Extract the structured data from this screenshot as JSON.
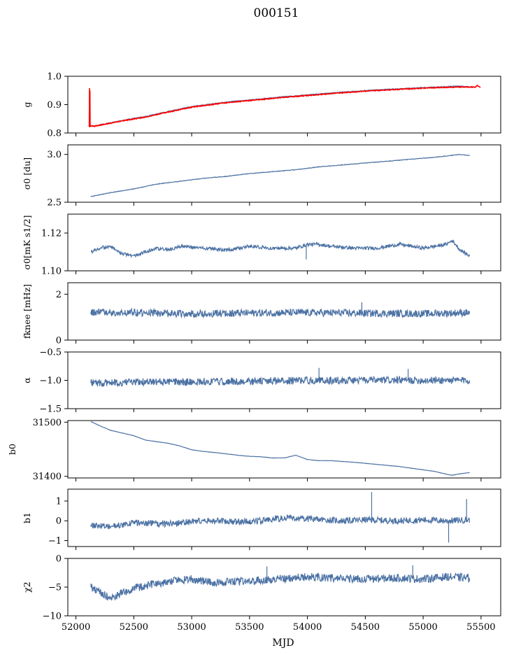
{
  "figure": {
    "title": "000151",
    "xlabel": "MJD"
  },
  "chart_data": {
    "type": "line",
    "shared_x": {
      "label": "MJD",
      "range": [
        51930,
        55670
      ],
      "ticks": [
        52000,
        52500,
        53000,
        53500,
        54000,
        54500,
        55000,
        55500
      ],
      "tick_labels": [
        "52000",
        "52500",
        "53000",
        "53500",
        "54000",
        "54500",
        "55000",
        "55500"
      ]
    },
    "panels": [
      {
        "id": "g",
        "ylabel": "g",
        "ylim": [
          0.8,
          1.0
        ],
        "yticks": [
          0.8,
          0.9,
          1.0
        ],
        "ytick_labels": [
          "0.8",
          "0.9",
          "1.0"
        ],
        "series": [
          {
            "color": "#4c72a4",
            "noise": 0.0015,
            "seed": 11,
            "x": [
              52120,
              52160,
              52200,
              52300,
              52450,
              52600,
              52800,
              53000,
              53300,
              53600,
              53800,
              54000,
              54300,
              54600,
              54900,
              55100,
              55300,
              55400
            ],
            "y": [
              0.824,
              0.825,
              0.828,
              0.836,
              0.848,
              0.858,
              0.876,
              0.893,
              0.909,
              0.92,
              0.928,
              0.934,
              0.944,
              0.952,
              0.958,
              0.962,
              0.965,
              0.963
            ]
          },
          {
            "color": "#ff0000",
            "noise": 0.0015,
            "seed": 12,
            "x": [
              52115,
              52117,
              52119,
              52121,
              52123,
              52125,
              52160,
              52200,
              52300,
              52450,
              52600,
              52800,
              53000,
              53300,
              53600,
              53800,
              54000,
              54300,
              54600,
              54900,
              55100,
              55300,
              55450,
              55470,
              55490
            ],
            "y": [
              0.822,
              0.958,
              0.82,
              0.95,
              0.822,
              0.825,
              0.824,
              0.827,
              0.835,
              0.846,
              0.856,
              0.874,
              0.891,
              0.907,
              0.918,
              0.926,
              0.932,
              0.942,
              0.95,
              0.956,
              0.96,
              0.962,
              0.962,
              0.968,
              0.962
            ]
          }
        ]
      },
      {
        "id": "sigma0-du",
        "ylabel": "σ0 [du]",
        "ylim": [
          2.5,
          3.1
        ],
        "yticks": [
          2.5,
          3.0
        ],
        "ytick_labels": [
          "2.5",
          "3.0"
        ],
        "series": [
          {
            "color": "#4c72a4",
            "noise": 0.003,
            "seed": 21,
            "x": [
              52130,
              52300,
              52500,
              52700,
              52900,
              53100,
              53300,
              53500,
              53700,
              53900,
              54100,
              54300,
              54500,
              54700,
              54900,
              55100,
              55250,
              55300,
              55400
            ],
            "y": [
              2.56,
              2.6,
              2.64,
              2.69,
              2.72,
              2.75,
              2.77,
              2.8,
              2.82,
              2.84,
              2.87,
              2.89,
              2.91,
              2.93,
              2.95,
              2.97,
              2.99,
              3.0,
              2.99
            ]
          }
        ]
      },
      {
        "id": "sigma0-mk",
        "ylabel": "σ0[mK s1/2]",
        "ylim": [
          1.1,
          1.13
        ],
        "yticks": [
          1.1,
          1.12
        ],
        "ytick_labels": [
          "1.10",
          "1.12"
        ],
        "series": [
          {
            "color": "#4c72a4",
            "noise": 0.0009,
            "seed": 31,
            "x": [
              52130,
              52200,
              52300,
              52400,
              52500,
              52600,
              52700,
              52800,
              52900,
              53100,
              53300,
              53500,
              53700,
              53900,
              54000,
              54100,
              54200,
              54400,
              54600,
              54800,
              55000,
              55100,
              55200,
              55250,
              55280,
              55320,
              55400
            ],
            "y": [
              1.11,
              1.112,
              1.113,
              1.109,
              1.108,
              1.11,
              1.112,
              1.111,
              1.113,
              1.112,
              1.111,
              1.113,
              1.112,
              1.112,
              1.114,
              1.114,
              1.113,
              1.112,
              1.112,
              1.114,
              1.112,
              1.113,
              1.114,
              1.116,
              1.114,
              1.111,
              1.108
            ]
          }
        ]
      },
      {
        "id": "fknee",
        "ylabel": "fknee [mHz]",
        "ylim": [
          0,
          2.5
        ],
        "yticks": [
          0,
          2
        ],
        "ytick_labels": [
          "0",
          "2"
        ],
        "series": [
          {
            "color": "#4c72a4",
            "noise": 0.16,
            "seed": 41,
            "x": [
              52130,
              52500,
              53000,
              53500,
              54000,
              54500,
              55000,
              55400
            ],
            "y": [
              1.22,
              1.2,
              1.15,
              1.18,
              1.2,
              1.17,
              1.15,
              1.2
            ]
          }
        ]
      },
      {
        "id": "alpha",
        "ylabel": "α",
        "ylim": [
          -1.5,
          -0.5
        ],
        "yticks": [
          -1.5,
          -1.0,
          -0.5
        ],
        "ytick_labels": [
          "−1.5",
          "−1.0",
          "−0.5"
        ],
        "series": [
          {
            "color": "#4c72a4",
            "noise": 0.065,
            "seed": 51,
            "x": [
              52130,
              52500,
              53000,
              53500,
              54000,
              54500,
              55000,
              55400
            ],
            "y": [
              -1.05,
              -1.03,
              -1.03,
              -1.02,
              -1.0,
              -1.0,
              -1.0,
              -1.0
            ]
          }
        ]
      },
      {
        "id": "b0",
        "ylabel": "b0",
        "ylim": [
          31397,
          31503
        ],
        "yticks": [
          31400,
          31500
        ],
        "ytick_labels": [
          "31400",
          "31500"
        ],
        "series": [
          {
            "color": "#4c72a4",
            "noise": 0.25,
            "seed": 61,
            "x": [
              52130,
              52200,
              52300,
              52400,
              52500,
              52600,
              52700,
              52800,
              52900,
              53000,
              53100,
              53200,
              53400,
              53500,
              53600,
              53700,
              53800,
              53900,
              54000,
              54100,
              54200,
              54400,
              54500,
              54600,
              54800,
              55000,
              55100,
              55200,
              55250,
              55300,
              55400
            ],
            "y": [
              31501,
              31494,
              31485,
              31480,
              31475,
              31467,
              31464,
              31461,
              31456,
              31449,
              31446,
              31444,
              31439,
              31437,
              31436,
              31434,
              31434,
              31439,
              31431,
              31429,
              31429,
              31426,
              31424,
              31422,
              31418,
              31412,
              31409,
              31404,
              31402,
              31404,
              31407
            ]
          }
        ]
      },
      {
        "id": "b1",
        "ylabel": "b1",
        "ylim": [
          -1.3,
          1.6
        ],
        "yticks": [
          -1,
          0,
          1
        ],
        "ytick_labels": [
          "−1",
          "0",
          "1"
        ],
        "series": [
          {
            "color": "#4c72a4",
            "noise": 0.16,
            "seed": 71,
            "x": [
              52130,
              52300,
              52500,
              52800,
              53100,
              53500,
              53800,
              54000,
              54300,
              54500,
              54800,
              55000,
              55200,
              55400
            ],
            "y": [
              -0.2,
              -0.3,
              -0.1,
              -0.15,
              0.0,
              -0.05,
              0.15,
              0.1,
              0.0,
              0.05,
              0.0,
              0.05,
              0.0,
              0.05
            ]
          }
        ]
      },
      {
        "id": "chi2",
        "ylabel": "χ2",
        "ylim": [
          -10,
          0
        ],
        "yticks": [
          -10,
          -5,
          0
        ],
        "ytick_labels": [
          "−10",
          "−5",
          "0"
        ],
        "series": [
          {
            "color": "#4c72a4",
            "noise": 0.7,
            "seed": 81,
            "x": [
              52130,
              52200,
              52300,
              52400,
              52500,
              52600,
              52800,
              53000,
              53200,
              53500,
              53800,
              54000,
              54200,
              54500,
              54800,
              55000,
              55200,
              55400
            ],
            "y": [
              -5.0,
              -5.8,
              -7.0,
              -6.0,
              -5.2,
              -4.8,
              -4.0,
              -3.6,
              -4.2,
              -4.0,
              -3.5,
              -3.2,
              -3.4,
              -3.6,
              -3.4,
              -3.6,
              -3.2,
              -3.4
            ]
          }
        ]
      }
    ],
    "spikes": [
      {
        "panel": "b1",
        "x": 54555,
        "y": 1.45
      },
      {
        "panel": "b1",
        "x": 55220,
        "y": -1.1
      },
      {
        "panel": "b1",
        "x": 55375,
        "y": 1.1
      },
      {
        "panel": "alpha",
        "x": 54100,
        "y": -0.78
      },
      {
        "panel": "alpha",
        "x": 54870,
        "y": -0.8
      },
      {
        "panel": "fknee",
        "x": 54470,
        "y": 1.65
      },
      {
        "panel": "sigma0-mk",
        "x": 53990,
        "y": 1.106
      },
      {
        "panel": "chi2",
        "x": 53650,
        "y": -1.4
      },
      {
        "panel": "chi2",
        "x": 54910,
        "y": -1.2
      }
    ]
  }
}
